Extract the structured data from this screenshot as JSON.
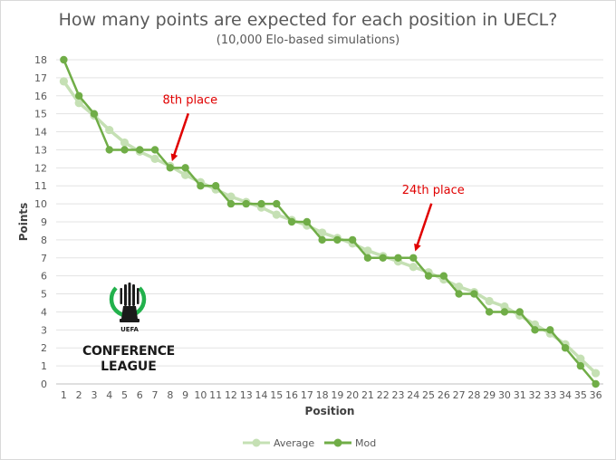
{
  "chart_data": {
    "type": "line",
    "title": "How many points are expected for each position in UECL?",
    "subtitle": "(10,000 Elo-based simulations)",
    "xlabel": "Position",
    "ylabel": "Points",
    "x": [
      1,
      2,
      3,
      4,
      5,
      6,
      7,
      8,
      9,
      10,
      11,
      12,
      13,
      14,
      15,
      16,
      17,
      18,
      19,
      20,
      21,
      22,
      23,
      24,
      25,
      26,
      27,
      28,
      29,
      30,
      31,
      32,
      33,
      34,
      35,
      36
    ],
    "ylim": [
      0,
      18
    ],
    "yticks": [
      0,
      1,
      2,
      3,
      4,
      5,
      6,
      7,
      8,
      9,
      10,
      11,
      12,
      13,
      14,
      15,
      16,
      17,
      18
    ],
    "grid": true,
    "legend_position": "bottom",
    "series": [
      {
        "name": "Average",
        "color": "#c5e0b4",
        "values": [
          16.8,
          15.6,
          14.9,
          14.1,
          13.4,
          12.9,
          12.5,
          12.1,
          11.6,
          11.2,
          10.8,
          10.4,
          10.1,
          9.8,
          9.4,
          9.1,
          8.8,
          8.4,
          8.1,
          7.8,
          7.4,
          7.1,
          6.8,
          6.5,
          6.2,
          5.8,
          5.4,
          5.1,
          4.6,
          4.3,
          3.8,
          3.3,
          2.8,
          2.2,
          1.4,
          0.6
        ]
      },
      {
        "name": "Mod",
        "color": "#70ad47",
        "values": [
          18,
          16,
          15,
          13,
          13,
          13,
          13,
          12,
          12,
          11,
          11,
          10,
          10,
          10,
          10,
          9,
          9,
          8,
          8,
          8,
          7,
          7,
          7,
          7,
          6,
          6,
          5,
          5,
          4,
          4,
          4,
          3,
          3,
          2,
          1,
          0
        ]
      }
    ],
    "annotations": [
      {
        "text": "8th place",
        "target_position": 8
      },
      {
        "text": "24th place",
        "target_position": 24
      }
    ],
    "annotation_color": "#e00000"
  },
  "logo": {
    "top_text": "UEFA",
    "line1": "CONFERENCE",
    "line2": "LEAGUE"
  }
}
